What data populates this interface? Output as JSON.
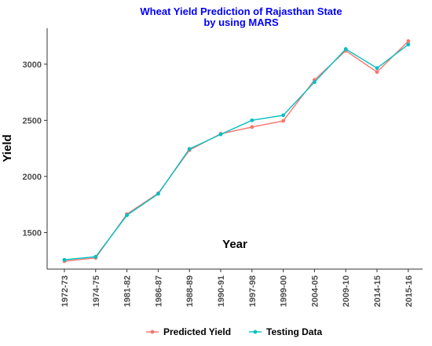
{
  "chart_data": {
    "type": "line",
    "title": "Wheat Yield Prediction of Rajasthan State",
    "subtitle": "by using MARS",
    "xlabel": "Year",
    "ylabel": "Yield",
    "categories": [
      "1972-73",
      "1974-75",
      "1981-82",
      "1986-87",
      "1988-89",
      "1990-91",
      "1997-98",
      "1999-00",
      "2004-05",
      "2009-10",
      "2014-15",
      "2015-16"
    ],
    "yticks": [
      1500,
      2000,
      2500,
      3000
    ],
    "ylim": [
      1175,
      3320
    ],
    "grid": false,
    "legend_position": "bottom",
    "series": [
      {
        "name": "Predicted Yield",
        "color": "#F8766D",
        "values": [
          1245,
          1275,
          1665,
          1850,
          2235,
          2380,
          2440,
          2495,
          2860,
          3120,
          2930,
          3205
        ]
      },
      {
        "name": "Testing Data",
        "color": "#00BFC4",
        "values": [
          1258,
          1285,
          1655,
          1845,
          2245,
          2375,
          2500,
          2545,
          2840,
          3135,
          2965,
          3175
        ]
      }
    ]
  },
  "colors": {
    "title": "#0000FF",
    "axis": "#333333"
  }
}
